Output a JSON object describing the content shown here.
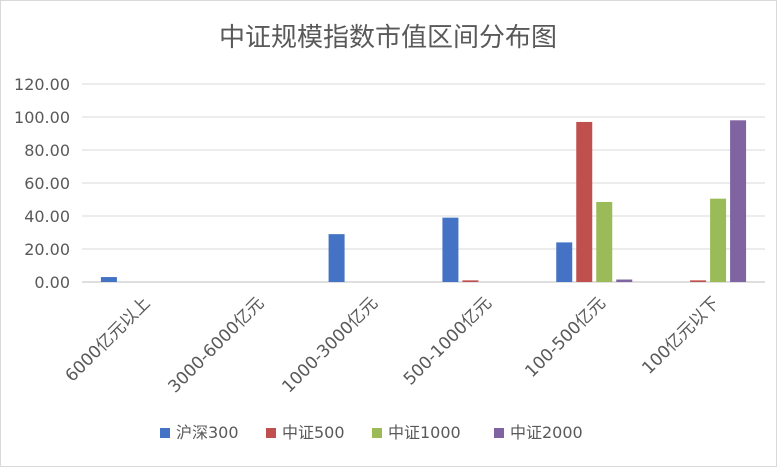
{
  "chart_data": {
    "type": "bar",
    "title": "中证规模指数市值区间分布图",
    "xlabel": "",
    "ylabel": "",
    "categories": [
      "6000亿元以上",
      "3000-6000亿元",
      "1000-3000亿元",
      "500-1000亿元",
      "100-500亿元",
      "100亿元以下"
    ],
    "series": [
      {
        "name": "沪深300",
        "color": "#4472C4",
        "values": [
          3.0,
          0.0,
          29.0,
          39.0,
          24.0,
          0.0
        ]
      },
      {
        "name": "中证500",
        "color": "#C0504D",
        "values": [
          0.0,
          0.0,
          0.0,
          1.0,
          97.0,
          1.0
        ]
      },
      {
        "name": "中证1000",
        "color": "#9BBB59",
        "values": [
          0.0,
          0.0,
          0.0,
          0.0,
          48.5,
          50.5
        ]
      },
      {
        "name": "中证2000",
        "color": "#8064A2",
        "values": [
          0.0,
          0.0,
          0.0,
          0.0,
          1.5,
          98.0
        ]
      }
    ],
    "ylim": [
      0,
      120
    ],
    "yticks": [
      "0.00",
      "20.00",
      "40.00",
      "60.00",
      "80.00",
      "100.00",
      "120.00"
    ],
    "grid": true,
    "legend_position": "bottom"
  }
}
